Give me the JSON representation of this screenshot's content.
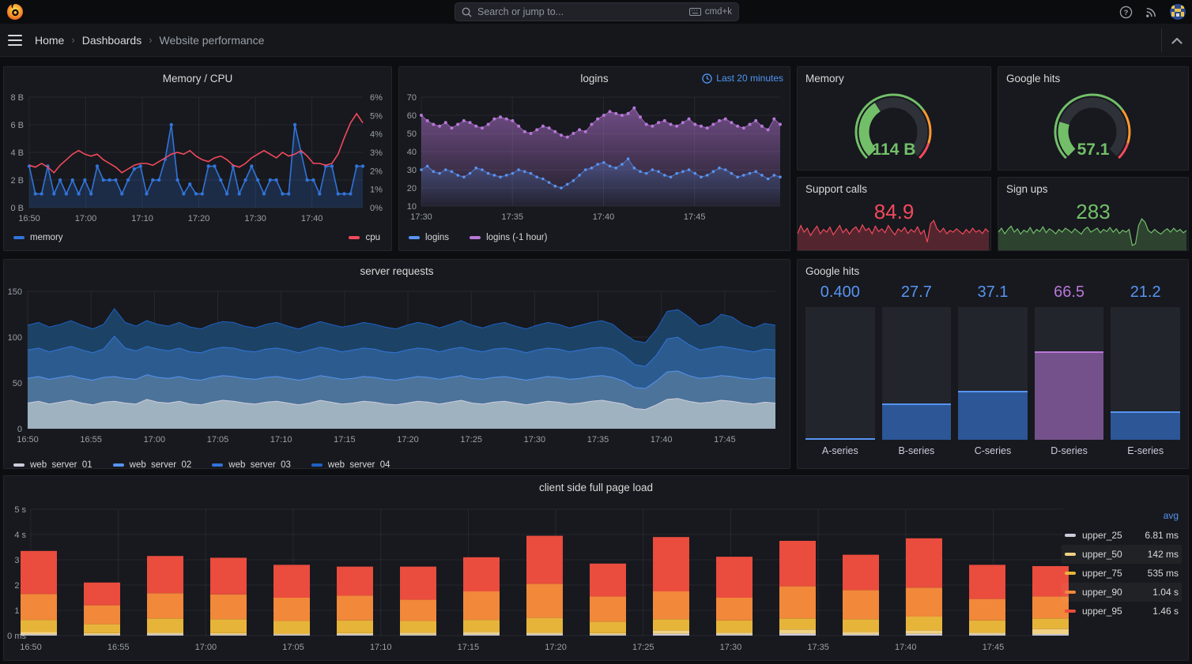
{
  "topbar": {
    "search_placeholder": "Search or jump to...",
    "shortcut": "cmd+k"
  },
  "breadcrumb": {
    "items": [
      "Home",
      "Dashboards",
      "Website performance"
    ],
    "separator": "›"
  },
  "panels": {
    "memory_cpu": {
      "title": "Memory / CPU",
      "y_left_ticks": [
        "0 B",
        "2 B",
        "4 B",
        "6 B",
        "8 B"
      ],
      "y_right_ticks": [
        "0%",
        "1%",
        "2%",
        "3%",
        "4%",
        "5%",
        "6%"
      ],
      "x_ticks": [
        "16:50",
        "17:00",
        "17:10",
        "17:20",
        "17:30",
        "17:40"
      ],
      "legend": [
        {
          "label": "memory",
          "color": "#3274d9"
        },
        {
          "label": "cpu",
          "color": "#f2495c"
        }
      ],
      "memory_max": 8,
      "cpu_max": 6,
      "memory_values": [
        3,
        1,
        1,
        3,
        1,
        2,
        1,
        2,
        1,
        2,
        1,
        3,
        2,
        2,
        2,
        1,
        2,
        2.8,
        3,
        1,
        2,
        2,
        3.5,
        6,
        2,
        1,
        1.7,
        1,
        1,
        3,
        3,
        2,
        1,
        3,
        1,
        2,
        3,
        2,
        1,
        2,
        2,
        1,
        1,
        6,
        4,
        2,
        2,
        1,
        3,
        3,
        1,
        1,
        1,
        3,
        3
      ],
      "cpu_values": [
        2.3,
        2.2,
        2.4,
        2.2,
        1.9,
        2.3,
        2.6,
        2.9,
        3.1,
        2.9,
        2.8,
        2.9,
        2.6,
        2.4,
        2.2,
        1.9,
        2.1,
        2.3,
        2.4,
        2.4,
        2.3,
        2.5,
        2.7,
        2.9,
        3.0,
        2.9,
        3.1,
        2.8,
        2.6,
        2.5,
        2.7,
        2.8,
        2.6,
        2.3,
        2.2,
        2.4,
        2.7,
        2.9,
        3.1,
        2.9,
        2.7,
        3.0,
        2.8,
        2.9,
        3.1,
        2.8,
        2.4,
        2.4,
        2.3,
        2.4,
        2.9,
        3.8,
        4.6,
        5.1,
        4.6
      ]
    },
    "logins": {
      "title": "logins",
      "time_range": "Last 20 minutes",
      "y_ticks": [
        "10",
        "20",
        "30",
        "40",
        "50",
        "60",
        "70"
      ],
      "x_ticks": [
        "17:30",
        "17:35",
        "17:40",
        "17:45"
      ],
      "y_min": 10,
      "y_max": 70,
      "legend": [
        {
          "label": "logins",
          "color": "#5794f2"
        },
        {
          "label": "logins (-1 hour)",
          "color": "#b877d9"
        }
      ],
      "logins_values": [
        30,
        32,
        29,
        28,
        30,
        29,
        27,
        26,
        28,
        31,
        30,
        28,
        27,
        26,
        27,
        28,
        30,
        29,
        28,
        26,
        25,
        23,
        21,
        20,
        22,
        24,
        27,
        30,
        31,
        33,
        34,
        32,
        31,
        33,
        36,
        31,
        29,
        28,
        30,
        29,
        27,
        26,
        28,
        29,
        30,
        28,
        26,
        27,
        29,
        31,
        30,
        28,
        26,
        27,
        28,
        29,
        27,
        25,
        27,
        26
      ],
      "logins_1h_values": [
        60,
        57,
        55,
        54,
        56,
        53,
        55,
        57,
        56,
        54,
        53,
        55,
        58,
        59,
        58,
        57,
        54,
        51,
        50,
        52,
        54,
        53,
        51,
        49,
        48,
        50,
        52,
        51,
        55,
        58,
        60,
        62,
        61,
        60,
        61,
        64,
        59,
        55,
        54,
        56,
        57,
        55,
        54,
        56,
        58,
        55,
        54,
        53,
        55,
        57,
        58,
        56,
        54,
        53,
        55,
        57,
        54,
        52,
        58,
        55
      ]
    },
    "memory_gauge": {
      "title": "Memory",
      "value": "114 B",
      "fill": 0.38,
      "color": "#73bf69"
    },
    "google_hits_gauge": {
      "title": "Google hits",
      "value": "57.1",
      "fill": 0.23,
      "color": "#73bf69"
    },
    "support_calls": {
      "title": "Support calls",
      "value": "84.9",
      "color": "#f2495c",
      "fill_color": "rgba(242,73,92,0.28)",
      "spark": [
        0.45,
        0.7,
        0.5,
        0.62,
        0.4,
        0.55,
        0.68,
        0.45,
        0.58,
        0.5,
        0.65,
        0.42,
        0.56,
        0.7,
        0.48,
        0.6,
        0.44,
        0.58,
        0.66,
        0.5,
        0.72,
        0.55,
        0.62,
        0.45,
        0.68,
        0.52,
        0.6,
        0.48,
        0.7,
        0.55,
        0.42,
        0.6,
        0.52,
        0.64,
        0.46,
        0.58,
        0.5,
        0.66,
        0.44,
        0.56,
        0.2,
        0.75,
        0.85,
        0.6,
        0.5,
        0.62,
        0.45,
        0.55,
        0.5,
        0.6,
        0.52,
        0.44,
        0.58,
        0.48,
        0.62,
        0.5,
        0.56,
        0.46,
        0.6,
        0.5
      ]
    },
    "sign_ups": {
      "title": "Sign ups",
      "value": "283",
      "color": "#73bf69",
      "fill_color": "rgba(115,191,105,0.25)",
      "spark": [
        0.5,
        0.62,
        0.45,
        0.58,
        0.68,
        0.5,
        0.6,
        0.44,
        0.56,
        0.5,
        0.64,
        0.46,
        0.58,
        0.52,
        0.66,
        0.48,
        0.6,
        0.54,
        0.45,
        0.58,
        0.5,
        0.62,
        0.56,
        0.48,
        0.6,
        0.52,
        0.44,
        0.58,
        0.65,
        0.5,
        0.56,
        0.62,
        0.48,
        0.58,
        0.52,
        0.64,
        0.5,
        0.6,
        0.46,
        0.56,
        0.5,
        0.58,
        0.1,
        0.15,
        0.7,
        0.9,
        0.8,
        0.55,
        0.48,
        0.58,
        0.5,
        0.44,
        0.54,
        0.6,
        0.5,
        0.62,
        0.52,
        0.58,
        0.48,
        0.55
      ]
    },
    "server_requests": {
      "title": "server requests",
      "y_ticks": [
        "0",
        "50",
        "100",
        "150"
      ],
      "x_ticks": [
        "16:50",
        "16:55",
        "17:00",
        "17:05",
        "17:10",
        "17:15",
        "17:20",
        "17:25",
        "17:30",
        "17:35",
        "17:40",
        "17:45"
      ],
      "y_max": 150,
      "series": [
        {
          "name": "web_server_01",
          "line": "#ccccdc",
          "fill": "#9fb2c0",
          "values": [
            28,
            30,
            27,
            29,
            31,
            28,
            26,
            29,
            30,
            28,
            27,
            32,
            29,
            28,
            30,
            27,
            26,
            29,
            31,
            30,
            28,
            27,
            29,
            30,
            28,
            26,
            28,
            31,
            29,
            27,
            28,
            30,
            29,
            27,
            26,
            28,
            30,
            29,
            27,
            29,
            31,
            28,
            27,
            29,
            30,
            28,
            26,
            28,
            30,
            29,
            27,
            28,
            30,
            31,
            29,
            27,
            22,
            21,
            26,
            32,
            33,
            30,
            28,
            29,
            31,
            30,
            28,
            27,
            29,
            28
          ]
        },
        {
          "name": "web_server_02",
          "line": "#5794f2",
          "fill": "#4c7399",
          "values": [
            55,
            57,
            54,
            56,
            58,
            55,
            53,
            56,
            57,
            55,
            54,
            59,
            56,
            55,
            57,
            54,
            53,
            56,
            58,
            57,
            55,
            54,
            56,
            57,
            55,
            53,
            55,
            58,
            56,
            54,
            55,
            57,
            56,
            54,
            53,
            55,
            57,
            56,
            54,
            56,
            58,
            55,
            54,
            56,
            57,
            55,
            53,
            55,
            57,
            56,
            54,
            55,
            57,
            58,
            56,
            52,
            45,
            44,
            52,
            62,
            63,
            58,
            55,
            56,
            58,
            57,
            55,
            54,
            56,
            55
          ]
        },
        {
          "name": "web_server_03",
          "line": "#3274d9",
          "fill": "#2c5c8f",
          "values": [
            86,
            88,
            84,
            87,
            90,
            86,
            83,
            87,
            101,
            88,
            85,
            90,
            87,
            85,
            88,
            84,
            83,
            87,
            89,
            88,
            85,
            84,
            87,
            88,
            86,
            83,
            86,
            89,
            87,
            84,
            86,
            88,
            87,
            84,
            83,
            86,
            88,
            87,
            84,
            87,
            89,
            86,
            84,
            87,
            88,
            86,
            83,
            86,
            88,
            87,
            84,
            86,
            88,
            89,
            87,
            80,
            70,
            68,
            80,
            98,
            100,
            92,
            86,
            88,
            90,
            88,
            86,
            84,
            87,
            86
          ]
        },
        {
          "name": "web_server_04",
          "line": "#1f60c4",
          "fill": "#1c4266",
          "values": [
            113,
            116,
            111,
            114,
            118,
            113,
            109,
            114,
            131,
            116,
            112,
            118,
            114,
            112,
            116,
            111,
            109,
            114,
            117,
            116,
            112,
            110,
            114,
            116,
            112,
            109,
            113,
            117,
            114,
            111,
            113,
            116,
            114,
            111,
            109,
            113,
            116,
            114,
            110,
            114,
            118,
            113,
            110,
            114,
            116,
            112,
            109,
            113,
            116,
            114,
            110,
            113,
            116,
            118,
            114,
            104,
            96,
            94,
            108,
            128,
            130,
            122,
            112,
            115,
            125,
            122,
            114,
            110,
            115,
            113
          ]
        }
      ]
    },
    "google_hits_bars": {
      "title": "Google hits",
      "max": 100,
      "bars": [
        {
          "label": "A-series",
          "value": "0.400",
          "num": 0.4,
          "fill": "rgba(50,116,217,0.62)",
          "edge": "#5794f2",
          "text": "#5794f2"
        },
        {
          "label": "B-series",
          "value": "27.7",
          "num": 27.7,
          "fill": "rgba(50,116,217,0.62)",
          "edge": "#5794f2",
          "text": "#5794f2"
        },
        {
          "label": "C-series",
          "value": "37.1",
          "num": 37.1,
          "fill": "rgba(50,116,217,0.62)",
          "edge": "#5794f2",
          "text": "#5794f2"
        },
        {
          "label": "D-series",
          "value": "66.5",
          "num": 66.5,
          "fill": "rgba(184,119,217,0.55)",
          "edge": "#b877d9",
          "text": "#b877d9"
        },
        {
          "label": "E-series",
          "value": "21.2",
          "num": 21.2,
          "fill": "rgba(50,116,217,0.62)",
          "edge": "#5794f2",
          "text": "#5794f2"
        }
      ]
    },
    "client_load": {
      "title": "client side full page load",
      "y_ticks": [
        "0 ms",
        "1 s",
        "2 s",
        "3 s",
        "4 s",
        "5 s"
      ],
      "x_ticks": [
        "16:50",
        "16:55",
        "17:00",
        "17:05",
        "17:10",
        "17:15",
        "17:20",
        "17:25",
        "17:30",
        "17:35",
        "17:40",
        "17:45"
      ],
      "y_max": 5,
      "legend_header": "avg",
      "legend": [
        {
          "label": "upper_25",
          "avg": "6.81 ms",
          "color": "#ccccdc",
          "highlight": false
        },
        {
          "label": "upper_50",
          "avg": "142 ms",
          "color": "#f1d183",
          "highlight": true
        },
        {
          "label": "upper_75",
          "avg": "535 ms",
          "color": "#e7b43a",
          "highlight": false
        },
        {
          "label": "upper_90",
          "avg": "1.04 s",
          "color": "#f1883a",
          "highlight": true
        },
        {
          "label": "upper_95",
          "avg": "1.46 s",
          "color": "#ea4c3e",
          "highlight": false
        }
      ],
      "bars": {
        "u25": [
          0.05,
          0.04,
          0.05,
          0.04,
          0.04,
          0.05,
          0.04,
          0.05,
          0.05,
          0.04,
          0.07,
          0.05,
          0.08,
          0.05,
          0.07,
          0.05,
          0.06
        ],
        "u50": [
          0.14,
          0.1,
          0.12,
          0.1,
          0.08,
          0.1,
          0.12,
          0.15,
          0.12,
          0.1,
          0.2,
          0.12,
          0.24,
          0.15,
          0.2,
          0.12,
          0.26
        ],
        "u75": [
          0.62,
          0.45,
          0.68,
          0.65,
          0.58,
          0.6,
          0.58,
          0.62,
          0.7,
          0.55,
          0.65,
          0.6,
          0.68,
          0.65,
          0.75,
          0.6,
          0.68
        ],
        "u90": [
          1.65,
          1.2,
          1.68,
          1.63,
          1.5,
          1.58,
          1.42,
          1.75,
          2.05,
          1.55,
          1.75,
          1.5,
          1.95,
          1.8,
          1.9,
          1.45,
          1.55
        ],
        "total": [
          3.35,
          2.1,
          3.15,
          3.08,
          2.8,
          2.73,
          2.73,
          3.1,
          3.95,
          2.85,
          3.9,
          3.12,
          3.75,
          3.2,
          3.85,
          2.8,
          2.75
        ]
      }
    }
  }
}
